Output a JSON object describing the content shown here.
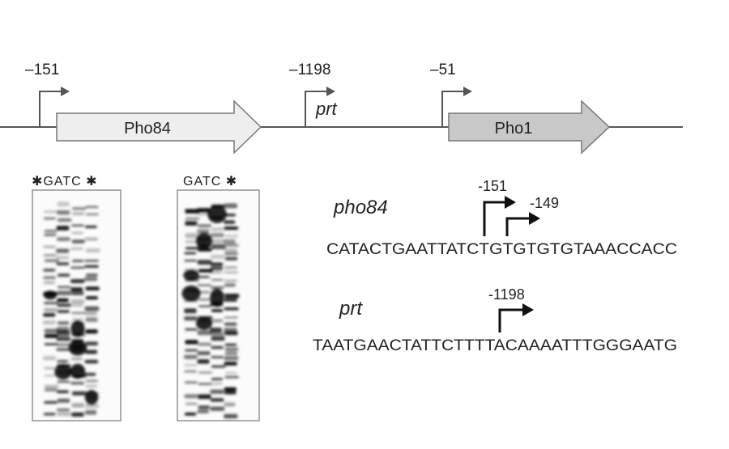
{
  "gene_map": {
    "tss_labels": [
      "–151",
      "–1198",
      "–51"
    ],
    "transcript_label": "prt",
    "genes": [
      {
        "name": "Pho84",
        "fill": "#eeeeee"
      },
      {
        "name": "Pho1",
        "fill": "#c8c8c8"
      }
    ]
  },
  "gels": [
    {
      "lane_header": "✱GATC ✱"
    },
    {
      "lane_header": "GATC ✱"
    }
  ],
  "sequences": [
    {
      "gene": "pho84",
      "sequence": "CATACTGAATTATCTGTGTGTGTAAACCACC",
      "sites": [
        "-151",
        "-149"
      ]
    },
    {
      "gene": "prt",
      "sequence": "TAATGAACTATTCTTTTACAAAATTTGGGAATG",
      "sites": [
        "-1198"
      ]
    }
  ],
  "colors": {
    "line": "#555555",
    "arrow": "#111111"
  }
}
